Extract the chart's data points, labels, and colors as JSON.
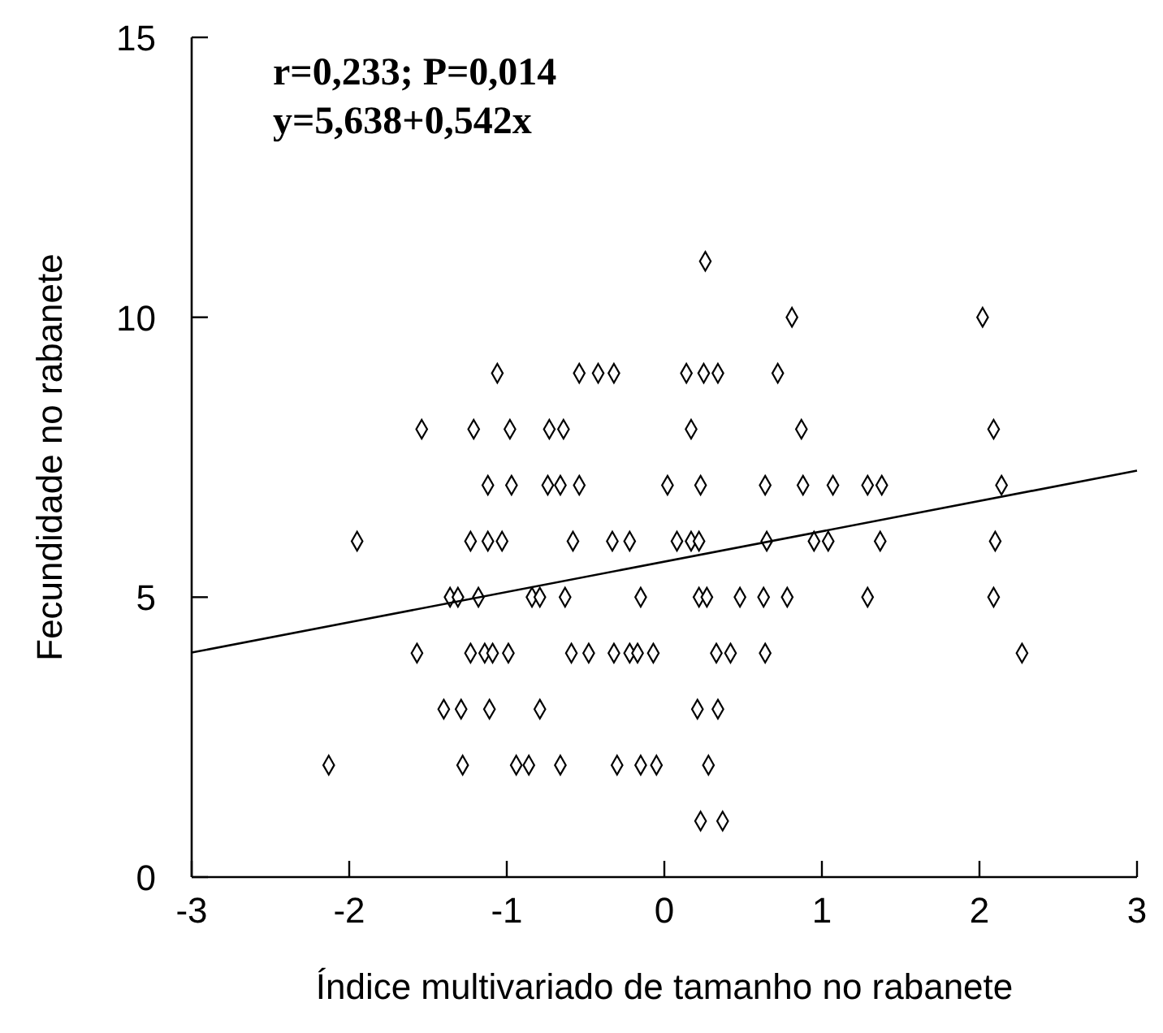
{
  "chart_data": {
    "type": "scatter",
    "xlabel": "Índice multivariado de tamanho no rabanete",
    "ylabel": "Fecundidade no rabanete",
    "annotations": [
      "r=0,233; P=0,014",
      "y=5,638+0,542x"
    ],
    "xlim": [
      -3,
      3
    ],
    "xticks": [
      -3,
      -2,
      -1,
      0,
      1,
      2,
      3
    ],
    "ylim": [
      0,
      15
    ],
    "yticks": [
      0,
      5,
      10,
      15
    ],
    "grid": false,
    "marker": "diamond",
    "series": [
      {
        "color": "#000000",
        "x": [
          -2.13,
          -1.95,
          -1.23,
          -1.12,
          -1.03,
          -0.58,
          -0.33,
          -0.22,
          -1.36,
          -1.31,
          -1.18,
          -0.84,
          -0.79,
          -0.63,
          -0.15,
          -1.57,
          -1.23,
          -1.14,
          -1.09,
          -0.99,
          -0.59,
          -0.48,
          -0.32,
          -0.22,
          -0.17,
          -0.07,
          -1.4,
          -1.29,
          -1.11,
          -0.79,
          -1.28,
          -0.94,
          -0.86,
          -0.66,
          -0.3,
          -0.15,
          -0.05,
          -1.06,
          -0.54,
          -0.42,
          -0.32,
          -1.54,
          -1.21,
          -0.98,
          -0.73,
          -0.64,
          -1.12,
          -0.97,
          -0.74,
          -0.66,
          -0.54,
          0.02,
          0.26,
          2.02,
          0.81,
          0.14,
          0.25,
          0.34,
          0.72,
          2.09,
          0.17,
          0.87,
          0.23,
          0.64,
          0.88,
          1.07,
          1.29,
          1.38,
          2.14,
          0.08,
          0.17,
          0.22,
          0.65,
          0.95,
          1.04,
          1.37,
          2.1,
          2.09,
          1.29,
          2.27,
          0.22,
          0.27,
          0.48,
          0.63,
          0.78,
          0.33,
          0.42,
          0.64,
          0.21,
          0.34,
          0.28,
          0.23,
          0.37
        ],
        "values": [
          2,
          6,
          6,
          6,
          6,
          6,
          6,
          6,
          5,
          5,
          5,
          5,
          5,
          5,
          5,
          4,
          4,
          4,
          4,
          4,
          4,
          4,
          4,
          4,
          4,
          4,
          3,
          3,
          3,
          3,
          2,
          2,
          2,
          2,
          2,
          2,
          2,
          9,
          9,
          9,
          9,
          8,
          8,
          8,
          8,
          8,
          7,
          7,
          7,
          7,
          7,
          7,
          11,
          10,
          10,
          9,
          9,
          9,
          9,
          8,
          8,
          8,
          7,
          7,
          7,
          7,
          7,
          7,
          7,
          6,
          6,
          6,
          6,
          6,
          6,
          6,
          6,
          5,
          5,
          4,
          5,
          5,
          5,
          5,
          5,
          4,
          4,
          4,
          3,
          3,
          2,
          1,
          1
        ]
      },
      {
        "type": "line",
        "color": "#000000",
        "marker": "none",
        "line_style": "solid",
        "x": [
          -3,
          3
        ],
        "values": [
          4.01,
          7.26
        ]
      }
    ]
  }
}
